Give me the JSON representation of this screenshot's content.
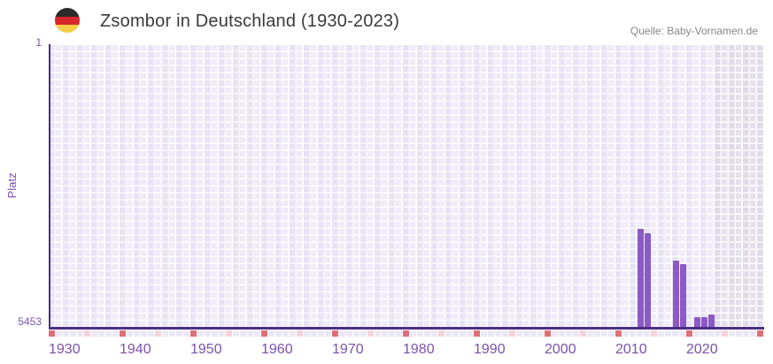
{
  "header": {
    "title": "Zsombor in Deutschland (1930-2023)",
    "source": "Quelle: Baby-Vornamen.de",
    "flag_icon": {
      "name": "germany-flag-icon",
      "stripe_colors": [
        "#2b2b2b",
        "#d8272c",
        "#f6cf46"
      ]
    }
  },
  "chart_data": {
    "type": "bar",
    "title": "Zsombor in Deutschland (1930-2023)",
    "xlabel": "",
    "ylabel": "Platz",
    "y_axis": {
      "top_label": "1",
      "bottom_label": "5453",
      "min": 1,
      "max": 5453,
      "inverted": true
    },
    "x_axis": {
      "start": 1930,
      "end": 2030,
      "data_end": 2023,
      "tick_labels": [
        "1930",
        "1940",
        "1950",
        "1960",
        "1970",
        "1980",
        "1990",
        "2000",
        "2010",
        "2020"
      ]
    },
    "future_region": {
      "start": 2024,
      "end": 2030
    },
    "points": [
      {
        "year": 2013,
        "rank": 3540
      },
      {
        "year": 2014,
        "rank": 3630
      },
      {
        "year": 2018,
        "rank": 4150
      },
      {
        "year": 2019,
        "rank": 4220
      },
      {
        "year": 2021,
        "rank": 5250
      },
      {
        "year": 2022,
        "rank": 5250
      },
      {
        "year": 2023,
        "rank": 5190
      }
    ],
    "legend": null,
    "grid": true
  },
  "colors": {
    "bar": "#8c5ac4",
    "axis_line": "#4b2e83",
    "axis_text": "#7b51ad",
    "decade_tick": "#dd6f77",
    "half_decade_tick": "#f4d4dc",
    "year_tick": "#ece8f5",
    "title_text": "#3a3a3a",
    "source_text": "#85868e"
  }
}
